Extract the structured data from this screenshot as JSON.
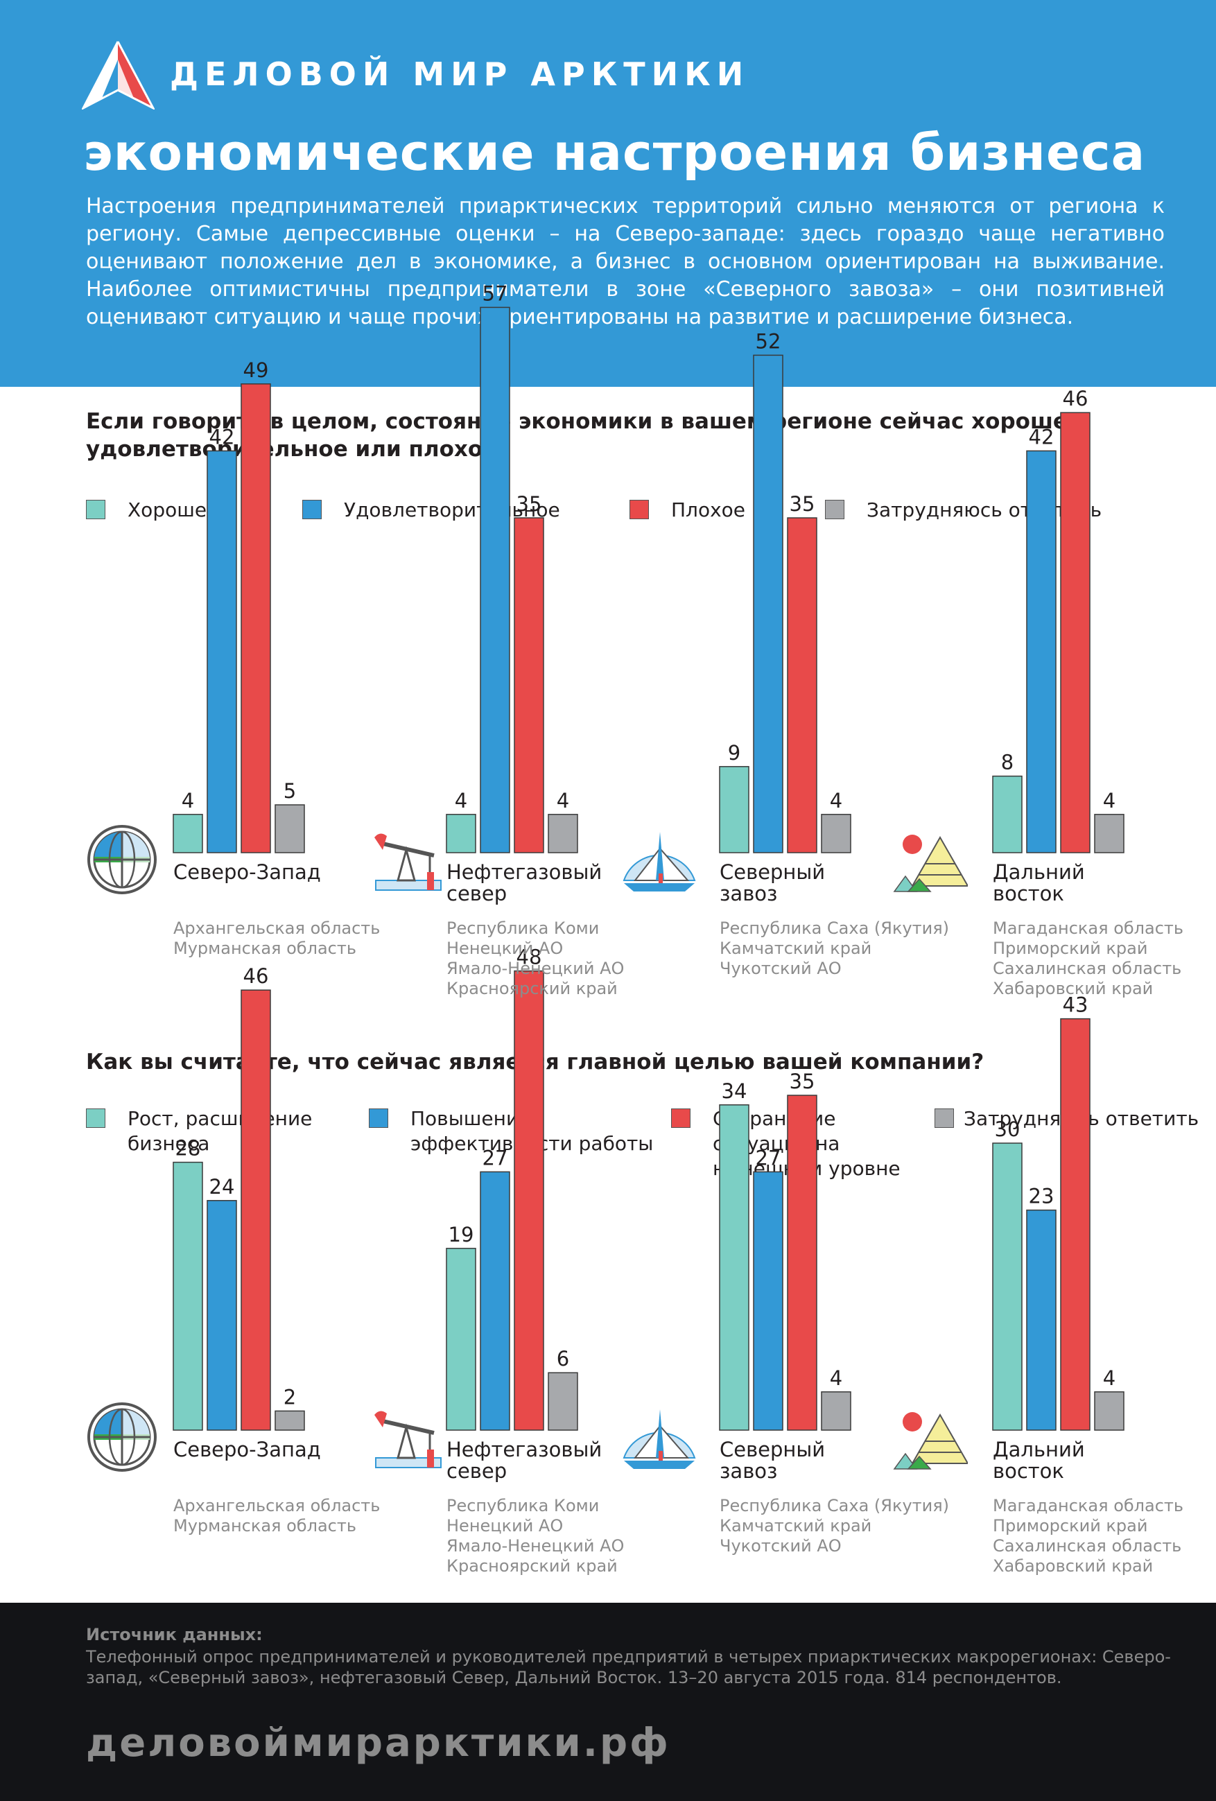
{
  "header": {
    "brand": "ДЕЛОВОЙ МИР АРКТИКИ",
    "title": "экономические настроения бизнеса",
    "intro": "Настроения предпринимателей приарктических территорий сильно меняются от региона к региону. Самые депрессивные оценки – на Северо-западе: здесь гораздо чаще негативно оценивают положение дел в экономике, а бизнес в основном ориентирован на выживание. Наиболее оптимистичны предприниматели в зоне «Северного завоза» – они позитивней оценивают ситуацию и чаще прочих ориентированы на развитие и расширение бизнеса."
  },
  "colors": {
    "teal": "#7ccfc4",
    "blue": "#3399d6",
    "red": "#e84a4a",
    "gray": "#a7a9ac",
    "header_bg": "#3399d6",
    "footer_bg": "#131417"
  },
  "regions": [
    {
      "name": "Северо-Запад",
      "subregions": [
        "Архангельская область",
        "Мурманская область"
      ],
      "icon": "globe-icon"
    },
    {
      "name": "Нефтегазовый\nсевер",
      "subregions": [
        "Республика Коми",
        "Ненецкий АО",
        "Ямало-Ненецкий АО",
        "Красноярский край"
      ],
      "icon": "oil-pump-icon"
    },
    {
      "name": "Северный\nзавоз",
      "subregions": [
        "Республика Саха (Якутия)",
        "Камчатский край",
        "Чукотский АО"
      ],
      "icon": "mountain-ship-icon"
    },
    {
      "name": "Дальний\nвосток",
      "subregions": [
        "Магаданская область",
        "Приморский край",
        "Сахалинская область",
        "Хабаровский край"
      ],
      "icon": "pyramid-sun-icon"
    }
  ],
  "chart_data": [
    {
      "type": "bar",
      "title": "Если говорить в целом, состояние экономики  в вашем регионе сейчас  хорошее, удовлетворительное или плохое?",
      "categories": [
        "Северо-Запад",
        "Нефтегазовый север",
        "Северный завоз",
        "Дальний восток"
      ],
      "series": [
        {
          "name": "Хорошее",
          "color": "#7ccfc4",
          "values": [
            4,
            4,
            9,
            8
          ]
        },
        {
          "name": "Удовлетворительное",
          "color": "#3399d6",
          "values": [
            42,
            57,
            52,
            42
          ]
        },
        {
          "name": "Плохое",
          "color": "#e84a4a",
          "values": [
            49,
            35,
            35,
            46
          ]
        },
        {
          "name": "Затрудняюсь ответить",
          "color": "#a7a9ac",
          "values": [
            5,
            4,
            4,
            4
          ]
        }
      ],
      "legend": "top",
      "grid": false
    },
    {
      "type": "bar",
      "title": "Как вы считаете, что сейчас является главной целью вашей компании?",
      "categories": [
        "Северо-Запад",
        "Нефтегазовый север",
        "Северный завоз",
        "Дальний восток"
      ],
      "series": [
        {
          "name": "Рост, расширение\nбизнеса",
          "color": "#7ccfc4",
          "values": [
            28,
            19,
            34,
            30
          ]
        },
        {
          "name": "Повышение\nэффективности работы",
          "color": "#3399d6",
          "values": [
            24,
            27,
            27,
            23
          ]
        },
        {
          "name": "Сохранение\nситуации на\nнынешнем уровне",
          "color": "#e84a4a",
          "values": [
            46,
            48,
            35,
            43
          ]
        },
        {
          "name": "Затрудняюсь ответить",
          "color": "#a7a9ac",
          "values": [
            2,
            6,
            4,
            4
          ]
        }
      ],
      "legend": "top",
      "grid": false
    }
  ],
  "footer": {
    "source_title": "Источник данных:",
    "source_text": "Телефонный опрос предпринимателей и руководителей предприятий в четырех приарктических макрорегионах: Северо-запад, «Северный завоз», нефтегазовый Север, Дальний Восток. 13–20 августа 2015 года. 814 респондентов.",
    "site": "деловоймирарктики.рф"
  }
}
